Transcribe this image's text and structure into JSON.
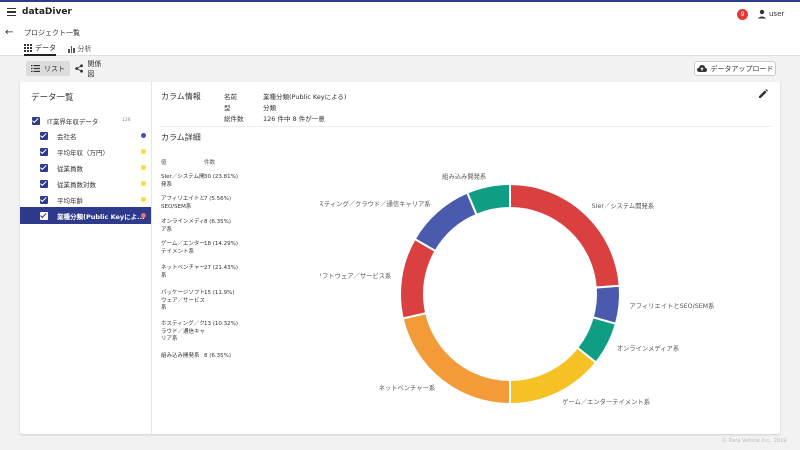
{
  "app": {
    "title": "dataDiver",
    "notification_count": "9",
    "user": "user"
  },
  "breadcrumb": "プロジェクト一覧",
  "tabs": [
    {
      "label": "データ"
    },
    {
      "label": "分析"
    }
  ],
  "toolbar": {
    "list_label": "リスト",
    "relation_label": "関係図",
    "upload_label": "データアップロード"
  },
  "data_list": {
    "title": "データ一覧",
    "dataset": {
      "label": "IT業界年収データ",
      "count": "126"
    },
    "columns": [
      {
        "label": "会社名",
        "color": "#3f51b5"
      },
      {
        "label": "平均年収（万円）",
        "color": "#fdd835"
      },
      {
        "label": "従業員数",
        "color": "#fdd835"
      },
      {
        "label": "従業員数対数",
        "color": "#fdd835"
      },
      {
        "label": "平均年齢",
        "color": "#fdd835"
      },
      {
        "label": "業種分類(Public Keyによ...",
        "color": "#e57373"
      }
    ]
  },
  "column_info": {
    "title": "カラム情報",
    "rows": [
      {
        "label": "名前",
        "value": "業種分類(Public Keyによる)"
      },
      {
        "label": "型",
        "value": "分類"
      },
      {
        "label": "総件数",
        "value": "126 件中 8 件が一意"
      }
    ]
  },
  "column_detail": {
    "title": "カラム詳細",
    "value_header": "値",
    "count_header": "件数"
  },
  "chart_data": {
    "type": "pie",
    "donut": true,
    "categories": [
      "SIer／システム開発系",
      "アフィリエイトとSEO/SEM系",
      "オンラインメディア系",
      "ゲーム／エンターテイメント系",
      "ネットベンチャー系",
      "パッケージソフトウェア／サービス系",
      "ホスティング／クラウド／通信キャリア系",
      "組み込み開発系"
    ],
    "table_labels": [
      "SIer／システム開発系",
      "アフィリエイトとSEO/SEM系",
      "オンラインメディア系",
      "ゲーム／エンターテイメント系",
      "ネットベンチャー系",
      "パッケージソフトウェア／サービス系",
      "ホスティング／クラウド／通信キャリア系",
      "組み込み開発系"
    ],
    "values": [
      30,
      7,
      8,
      18,
      27,
      15,
      13,
      8
    ],
    "value_labels": [
      "30 (23.81%)",
      "7 (5.56%)",
      "8 (6.35%)",
      "18 (14.29%)",
      "27 (21.43%)",
      "15 (11.9%)",
      "13 (10.32%)",
      "8 (6.35%)"
    ],
    "colors": [
      "#db4040",
      "#4a5bad",
      "#0f9e84",
      "#f5c125",
      "#f29b38",
      "#db4040",
      "#4a5bad",
      "#0f9e84"
    ],
    "legend": "none"
  },
  "footer": "© Data Vehicle Inc., 2019"
}
